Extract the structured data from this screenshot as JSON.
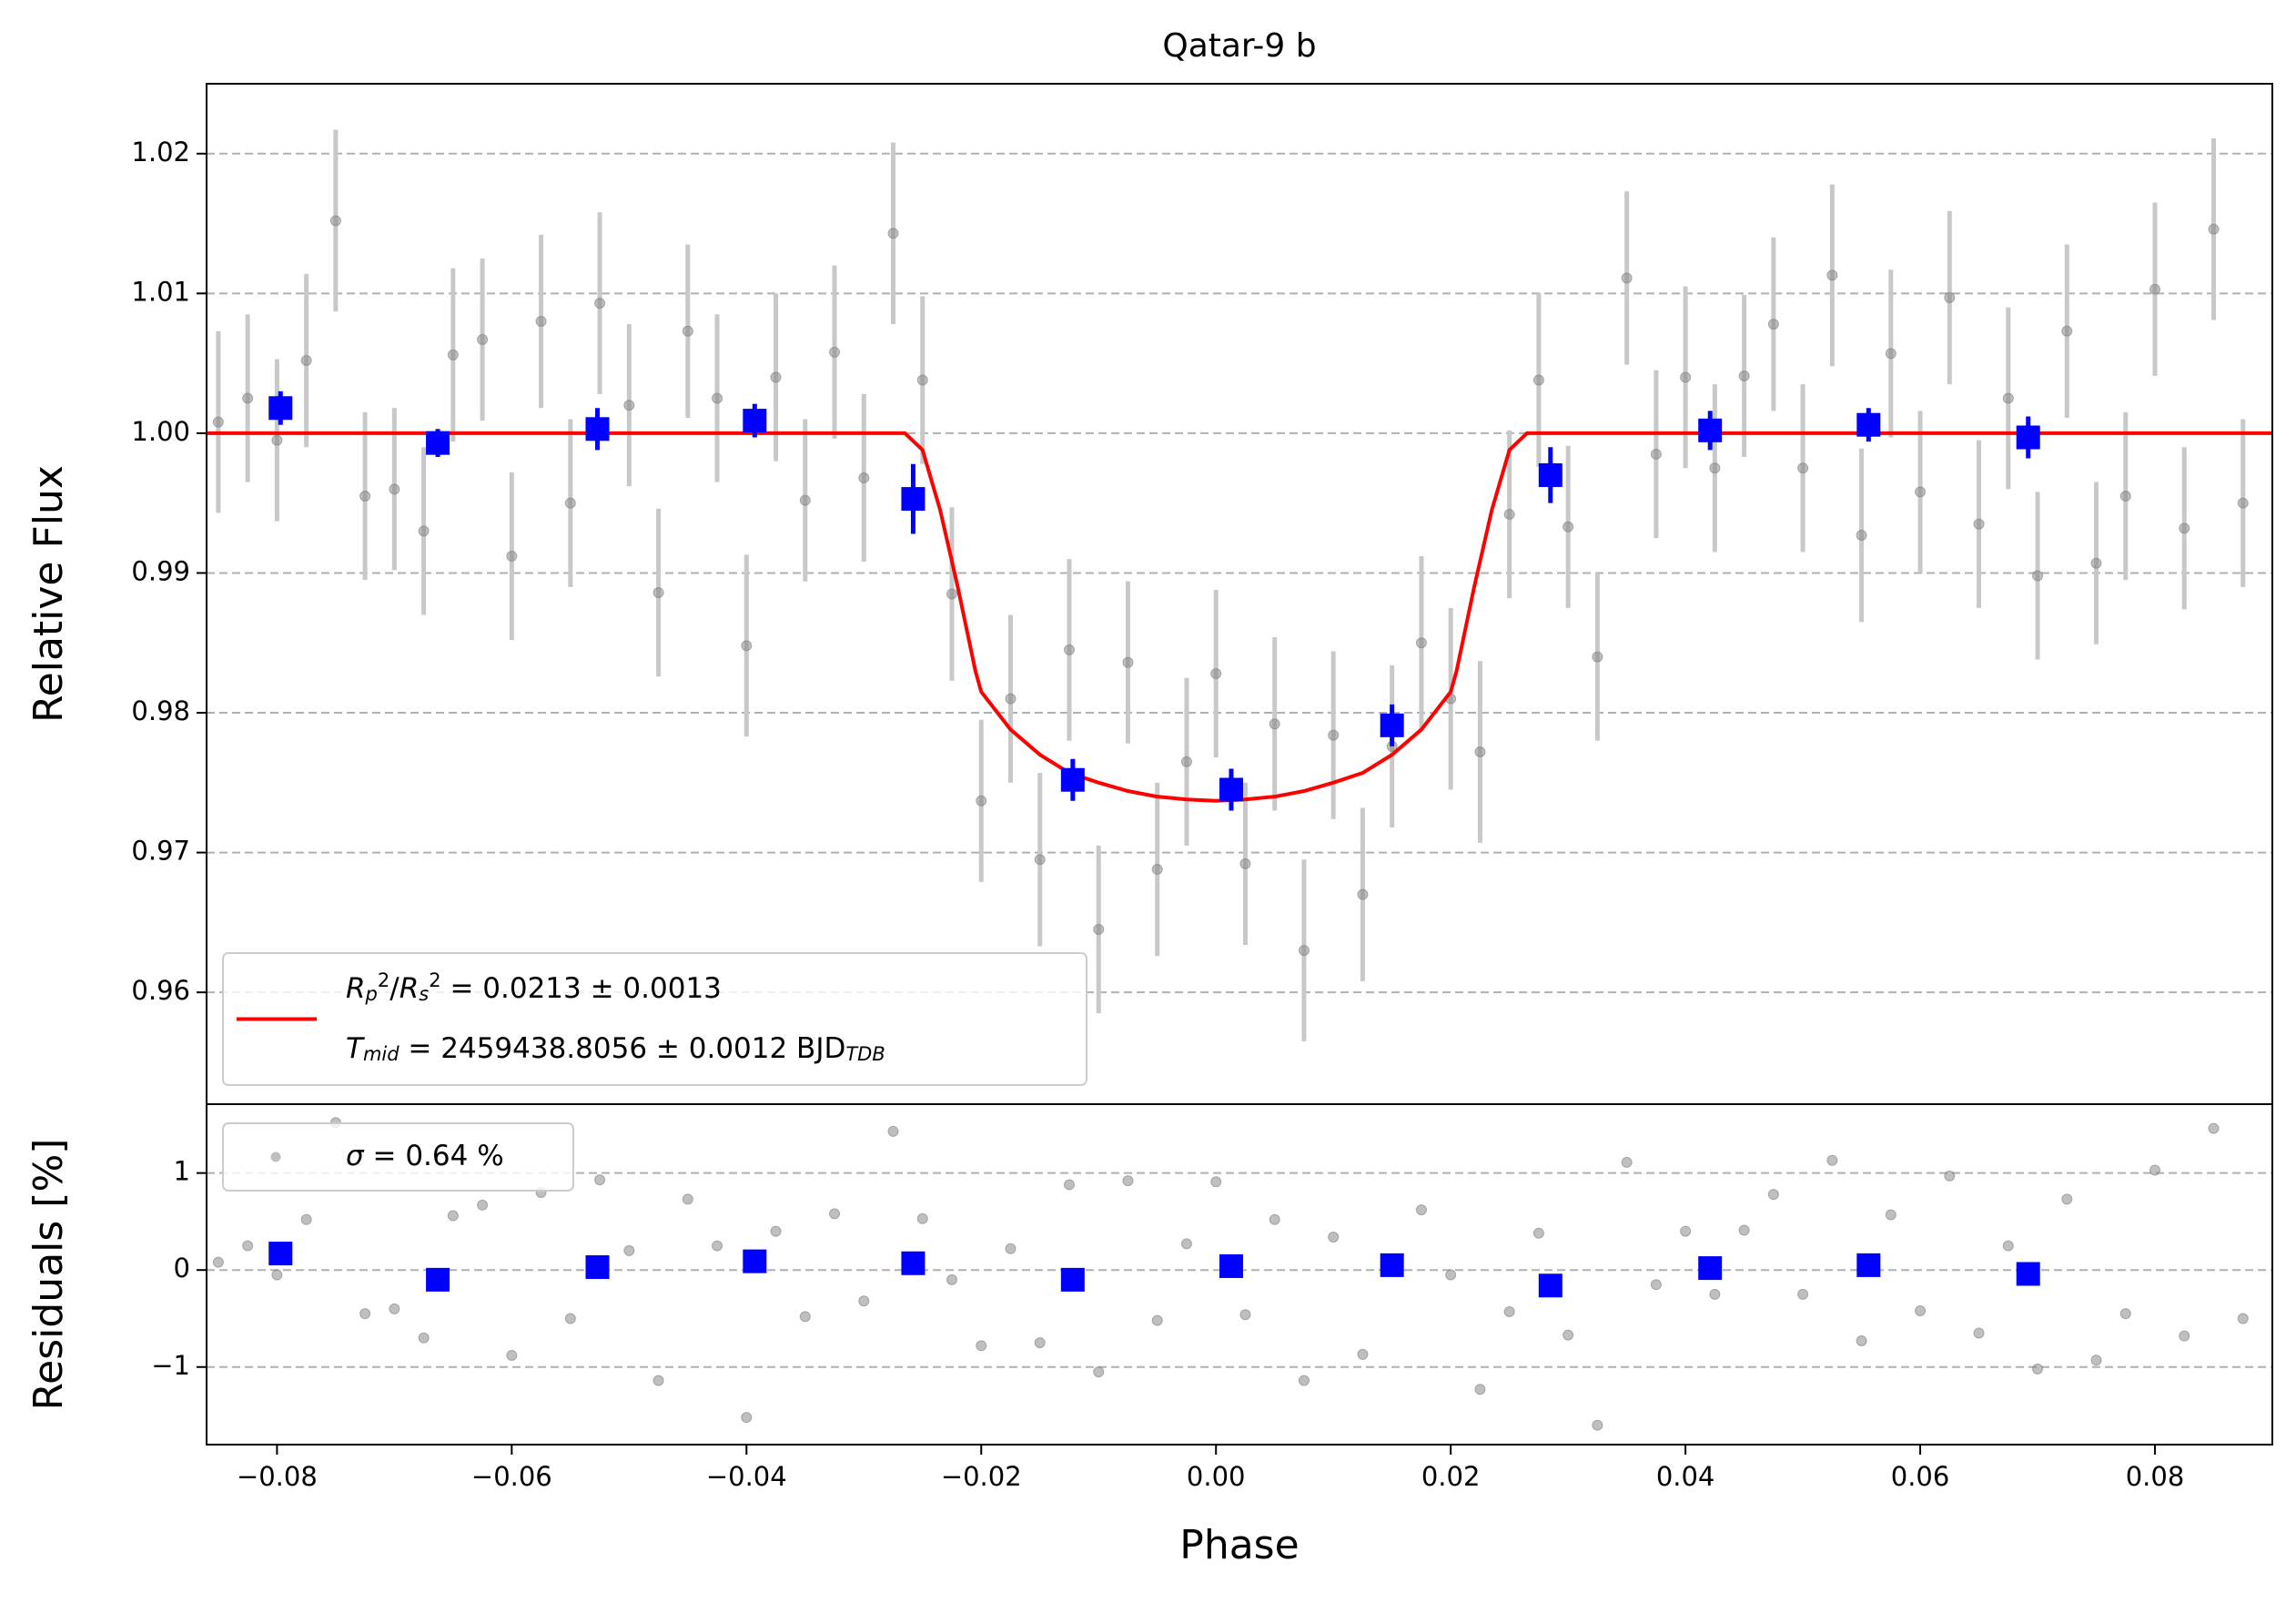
{
  "chart_data": [
    {
      "type": "errorbar",
      "title": "Qatar-9 b",
      "ylabel": "Relative Flux",
      "xlim": [
        -0.086,
        0.09
      ],
      "ylim": [
        0.952,
        1.025
      ],
      "yticks": [
        0.96,
        0.97,
        0.98,
        0.99,
        {
          "value": 1.0,
          "label": "1.00"
        },
        1.01,
        1.02
      ],
      "grid": true,
      "legend_loc": "lower left",
      "legend": [
        [
          {
            "t": "R",
            "style": "italic"
          },
          {
            "t": "p",
            "style": "sub"
          },
          {
            "t": "2",
            "style": "sup"
          },
          {
            "t": "/"
          },
          {
            "t": "R",
            "style": "italic"
          },
          {
            "t": "s",
            "style": "sub"
          },
          {
            "t": "2",
            "style": "sup"
          },
          {
            "t": " = 0.0213 ± 0.0013"
          }
        ],
        [
          {
            "t": "T",
            "style": "italic"
          },
          {
            "t": "mid",
            "style": "sub"
          },
          {
            "t": " = 2459438.8056 ± 0.0012 BJD"
          },
          {
            "t": "TDB",
            "style": "sub"
          }
        ]
      ],
      "legend_series": 1,
      "series": [
        {
          "kind": "errorbar",
          "color": "#808080",
          "errcolor": "#c8c8c8",
          "x": [
            -0.085,
            -0.0825,
            -0.08,
            -0.0775,
            -0.075,
            -0.0725,
            -0.07,
            -0.0675,
            -0.065,
            -0.0625,
            -0.06,
            -0.0575,
            -0.055,
            -0.0525,
            -0.05,
            -0.0475,
            -0.045,
            -0.0425,
            -0.04,
            -0.0375,
            -0.035,
            -0.0325,
            -0.03,
            -0.0275,
            -0.025,
            -0.0225,
            -0.02,
            -0.0175,
            -0.015,
            -0.0125,
            -0.01,
            -0.0075,
            -0.005,
            -0.0025,
            0.0,
            0.0025,
            0.005,
            0.0075,
            0.01,
            0.0125,
            0.015,
            0.0175,
            0.02,
            0.0225,
            0.025,
            0.0275,
            0.03,
            0.0325,
            0.035,
            0.0375,
            0.04,
            0.0425,
            0.045,
            0.0475,
            0.05,
            0.0525,
            0.055,
            0.0575,
            0.06,
            0.0625,
            0.065,
            0.0675,
            0.07,
            0.0725,
            0.075,
            0.0775,
            0.08,
            0.0825,
            0.085,
            0.0875
          ],
          "values": [
            1.0008,
            1.0025,
            0.9995,
            1.0052,
            1.0152,
            0.9955,
            0.996,
            0.993,
            1.0056,
            1.0067,
            0.9912,
            1.008,
            0.995,
            1.0093,
            1.002,
            0.9886,
            1.0073,
            1.0025,
            0.9848,
            1.004,
            0.9952,
            1.0058,
            0.9968,
            1.0143,
            1.0038,
            0.9885,
            0.9737,
            0.981,
            0.9695,
            0.9845,
            0.9645,
            0.9836,
            0.9688,
            0.9765,
            0.9828,
            0.9692,
            0.9792,
            0.963,
            0.9784,
            0.967,
            0.9776,
            0.985,
            0.981,
            0.9772,
            0.9942,
            1.0038,
            0.9933,
            0.984,
            1.0111,
            0.9985,
            1.004,
            0.9975,
            1.0041,
            1.0078,
            0.9975,
            1.0113,
            0.9927,
            1.0057,
            0.9958,
            1.0097,
            0.9935,
            1.0025,
            0.9898,
            1.0073,
            0.9907,
            0.9955,
            1.0103,
            0.9932,
            1.0146,
            0.995
          ],
          "errors": [
            0.0065,
            0.006,
            0.0058,
            0.0062,
            0.0065,
            0.006,
            0.0058,
            0.006,
            0.0062,
            0.0058,
            0.006,
            0.0062,
            0.006,
            0.0065,
            0.0058,
            0.006,
            0.0062,
            0.006,
            0.0065,
            0.006,
            0.0058,
            0.0062,
            0.006,
            0.0065,
            0.006,
            0.0062,
            0.0058,
            0.006,
            0.0062,
            0.0065,
            0.006,
            0.0058,
            0.0062,
            0.006,
            0.006,
            0.0058,
            0.0062,
            0.0065,
            0.006,
            0.0062,
            0.0058,
            0.0062,
            0.0065,
            0.0065,
            0.006,
            0.0062,
            0.0058,
            0.006,
            0.0062,
            0.006,
            0.0065,
            0.006,
            0.0058,
            0.0062,
            0.006,
            0.0065,
            0.0062,
            0.006,
            0.0058,
            0.0062,
            0.006,
            0.0065,
            0.006,
            0.0062,
            0.0058,
            0.006,
            0.0062,
            0.0058,
            0.0065,
            0.006
          ]
        },
        {
          "kind": "line",
          "color": "#ff0000",
          "x": [
            -0.086,
            -0.0265,
            -0.025,
            -0.0235,
            -0.022,
            -0.0205,
            -0.02,
            -0.0175,
            -0.015,
            -0.0125,
            -0.01,
            -0.0075,
            -0.005,
            -0.0025,
            0.0,
            0.0025,
            0.005,
            0.0075,
            0.01,
            0.0125,
            0.015,
            0.0175,
            0.02,
            0.0205,
            0.022,
            0.0235,
            0.025,
            0.0265,
            0.09
          ],
          "values": [
            1.0,
            1.0,
            0.9988,
            0.9945,
            0.989,
            0.983,
            0.9815,
            0.9788,
            0.977,
            0.9757,
            0.975,
            0.9744,
            0.974,
            0.9738,
            0.9737,
            0.9738,
            0.974,
            0.9744,
            0.975,
            0.9757,
            0.977,
            0.9788,
            0.9815,
            0.983,
            0.989,
            0.9945,
            0.9988,
            1.0,
            1.0
          ]
        },
        {
          "kind": "square",
          "color": "#0000ff",
          "x": [
            -0.0797,
            -0.0663,
            -0.0527,
            -0.0393,
            -0.0258,
            -0.0122,
            0.0013,
            0.015,
            0.0285,
            0.0421,
            0.0556,
            0.0692
          ],
          "values": [
            1.0018,
            0.9993,
            1.0003,
            1.0009,
            0.9953,
            0.9752,
            0.9745,
            0.9791,
            0.997,
            1.0002,
            1.0006,
            0.9997
          ],
          "errors": [
            0.0012,
            0.001,
            0.0015,
            0.0012,
            0.0025,
            0.0015,
            0.0015,
            0.0015,
            0.002,
            0.0014,
            0.0012,
            0.0015
          ]
        }
      ]
    },
    {
      "type": "errorbar",
      "ylabel": "Residuals [%]",
      "xlabel": "Phase",
      "xlim": [
        -0.086,
        0.09
      ],
      "ylim": [
        -1.8,
        1.71
      ],
      "xticks": [
        {
          "value": -0.08,
          "label": "−0.08"
        },
        {
          "value": -0.06,
          "label": "−0.06"
        },
        {
          "value": -0.04,
          "label": "−0.04"
        },
        {
          "value": -0.02,
          "label": "−0.02"
        },
        {
          "value": 0.0,
          "label": "0.00"
        },
        0.02,
        0.04,
        0.06,
        0.08
      ],
      "yticks": [
        {
          "value": -1,
          "label": "−1"
        },
        0,
        1
      ],
      "grid": true,
      "legend_loc": "upper left",
      "legend": [
        [
          {
            "t": "σ",
            "style": "italic"
          },
          {
            "t": " = 0.64 %"
          }
        ]
      ],
      "legend_series": 0,
      "series": [
        {
          "kind": "dots",
          "color": "#808080",
          "x": [
            -0.085,
            -0.0825,
            -0.08,
            -0.0775,
            -0.075,
            -0.0725,
            -0.07,
            -0.0675,
            -0.065,
            -0.0625,
            -0.06,
            -0.0575,
            -0.055,
            -0.0525,
            -0.05,
            -0.0475,
            -0.045,
            -0.0425,
            -0.04,
            -0.0375,
            -0.035,
            -0.0325,
            -0.03,
            -0.0275,
            -0.025,
            -0.0225,
            -0.02,
            -0.0175,
            -0.015,
            -0.0125,
            -0.01,
            -0.0075,
            -0.005,
            -0.0025,
            0.0,
            0.0025,
            0.005,
            0.0075,
            0.01,
            0.0125,
            0.015,
            0.0175,
            0.02,
            0.0225,
            0.025,
            0.0275,
            0.03,
            0.0325,
            0.035,
            0.0375,
            0.04,
            0.0425,
            0.045,
            0.0475,
            0.05,
            0.0525,
            0.055,
            0.0575,
            0.06,
            0.0625,
            0.065,
            0.0675,
            0.07,
            0.0725,
            0.075,
            0.0775,
            0.08,
            0.0825,
            0.085,
            0.0875
          ],
          "values": [
            0.08,
            0.25,
            -0.05,
            0.52,
            1.52,
            -0.45,
            -0.4,
            -0.7,
            0.56,
            0.67,
            -0.88,
            0.8,
            -0.5,
            0.93,
            0.2,
            -1.14,
            0.73,
            0.25,
            -1.52,
            0.4,
            -0.48,
            0.58,
            -0.32,
            1.43,
            0.53,
            -0.1,
            -0.78,
            0.22,
            -0.75,
            0.88,
            -1.05,
            0.92,
            -0.52,
            0.27,
            0.91,
            -0.46,
            0.52,
            -1.14,
            0.34,
            -0.87,
            0.06,
            0.62,
            -0.05,
            -1.23,
            -0.43,
            0.38,
            -0.67,
            -1.6,
            1.11,
            -0.15,
            0.4,
            -0.25,
            0.41,
            0.78,
            -0.25,
            1.13,
            -0.73,
            0.57,
            -0.42,
            0.97,
            -0.65,
            0.25,
            -1.02,
            0.73,
            -0.93,
            -0.45,
            1.03,
            -0.68,
            1.46,
            -0.5
          ]
        },
        {
          "kind": "square",
          "color": "#0000ff",
          "x": [
            -0.0797,
            -0.0663,
            -0.0527,
            -0.0393,
            -0.0258,
            -0.0122,
            0.0013,
            0.015,
            0.0285,
            0.0421,
            0.0556,
            0.0692
          ],
          "values": [
            0.17,
            -0.1,
            0.03,
            0.09,
            0.07,
            -0.1,
            0.04,
            0.05,
            -0.16,
            0.02,
            0.05,
            -0.04
          ]
        }
      ]
    }
  ]
}
